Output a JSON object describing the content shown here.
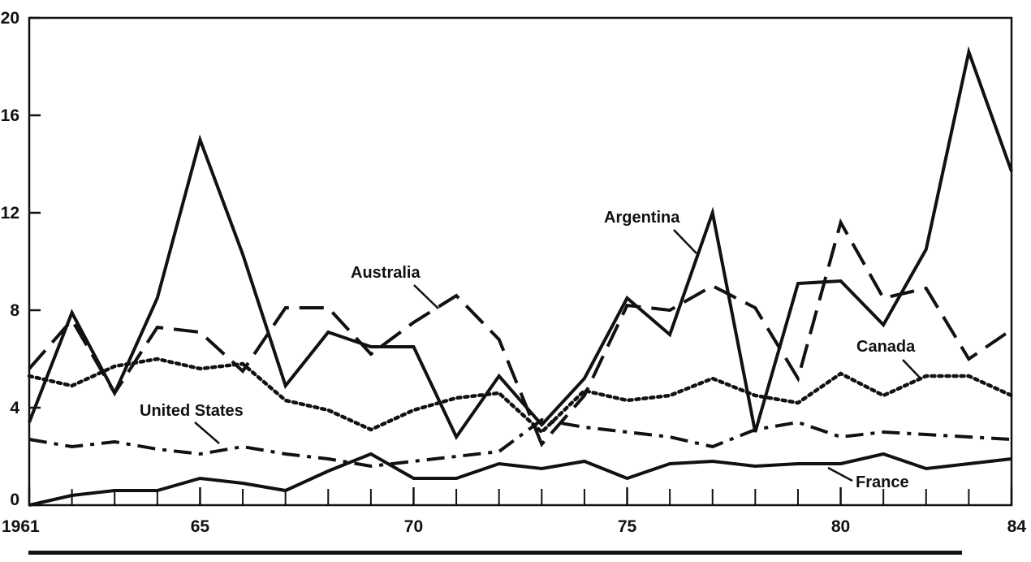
{
  "chart_data": {
    "type": "line",
    "xlim": [
      1961,
      1984
    ],
    "ylim": [
      0,
      20
    ],
    "grid": false,
    "yticks": [
      0,
      4,
      8,
      12,
      16,
      20
    ],
    "ytick_labels": [
      "0",
      "4",
      "8",
      "12",
      "16",
      "20"
    ],
    "xticks": [
      1961,
      1965,
      1970,
      1975,
      1980,
      1984
    ],
    "xtick_labels": [
      "1961",
      "65",
      "70",
      "75",
      "80",
      "84"
    ],
    "minor_xticks": [
      1962,
      1963,
      1964,
      1966,
      1967,
      1968,
      1969,
      1971,
      1972,
      1973,
      1974,
      1976,
      1977,
      1978,
      1979,
      1981,
      1982,
      1983
    ],
    "x": [
      1961,
      1962,
      1963,
      1964,
      1965,
      1966,
      1967,
      1968,
      1969,
      1970,
      1971,
      1972,
      1973,
      1974,
      1975,
      1976,
      1977,
      1978,
      1979,
      1980,
      1981,
      1982,
      1983,
      1984
    ],
    "series": [
      {
        "name": "Argentina",
        "style": "solid",
        "color": "#111111",
        "values": [
          3.4,
          7.9,
          4.6,
          8.5,
          15.0,
          10.3,
          4.9,
          7.1,
          6.5,
          6.5,
          2.8,
          5.3,
          3.3,
          5.2,
          8.5,
          7.0,
          12.0,
          3.0,
          9.1,
          9.2,
          7.4,
          10.5,
          18.6,
          13.7
        ]
      },
      {
        "name": "Australia",
        "style": "dashed",
        "color": "#111111",
        "values": [
          5.6,
          7.6,
          4.6,
          7.3,
          7.1,
          5.5,
          8.1,
          8.1,
          6.2,
          7.5,
          8.6,
          6.8,
          2.5,
          4.5,
          8.2,
          8.0,
          9.0,
          8.1,
          5.2,
          11.6,
          8.5,
          8.9,
          6.0,
          7.2
        ]
      },
      {
        "name": "Canada",
        "style": "dotted",
        "color": "#111111",
        "values": [
          5.3,
          4.9,
          5.7,
          6.0,
          5.6,
          5.8,
          4.3,
          3.9,
          3.1,
          3.9,
          4.4,
          4.6,
          3.0,
          4.7,
          4.3,
          4.5,
          5.2,
          4.5,
          4.2,
          5.4,
          4.5,
          5.3,
          5.3,
          4.5
        ]
      },
      {
        "name": "United States",
        "style": "dashdot",
        "color": "#111111",
        "values": [
          2.7,
          2.4,
          2.6,
          2.3,
          2.1,
          2.4,
          2.1,
          1.9,
          1.6,
          1.8,
          2.0,
          2.2,
          3.5,
          3.2,
          3.0,
          2.8,
          2.4,
          3.1,
          3.4,
          2.8,
          3.0,
          2.9,
          2.8,
          2.7
        ]
      },
      {
        "name": "France",
        "style": "solid",
        "color": "#111111",
        "values": [
          0.0,
          0.4,
          0.6,
          0.6,
          1.1,
          0.9,
          0.6,
          1.4,
          2.1,
          1.1,
          1.1,
          1.7,
          1.5,
          1.8,
          1.1,
          1.7,
          1.8,
          1.6,
          1.7,
          1.7,
          2.1,
          1.5,
          1.7,
          1.9
        ]
      }
    ],
    "annotations": [
      {
        "text": "Argentina",
        "series": "Argentina"
      },
      {
        "text": "Australia",
        "series": "Australia"
      },
      {
        "text": "Canada",
        "series": "Canada"
      },
      {
        "text": "United States",
        "series": "United States"
      },
      {
        "text": "France",
        "series": "France"
      }
    ]
  }
}
